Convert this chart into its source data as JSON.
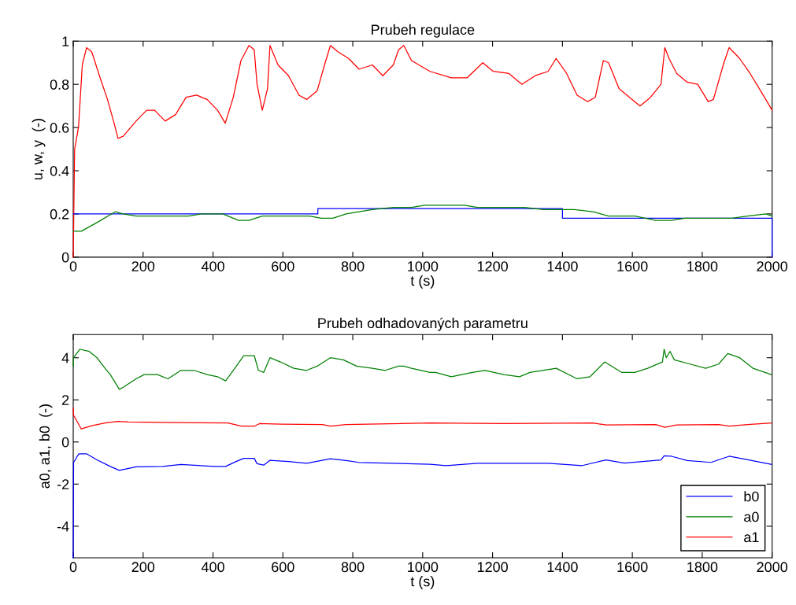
{
  "chart_data": [
    {
      "type": "line",
      "title": "Prubeh regulace",
      "xlabel": "t (s)",
      "ylabel": "u, w, y  (-)",
      "xlim": [
        0,
        2000
      ],
      "ylim": [
        0,
        1
      ],
      "xticks": [
        0,
        200,
        400,
        600,
        800,
        1000,
        1200,
        1400,
        1600,
        1800,
        2000
      ],
      "yticks": [
        0,
        0.2,
        0.4,
        0.6,
        0.8,
        1
      ],
      "grid": false,
      "legend": false,
      "series": [
        {
          "color": "#ff0000",
          "x": [
            0,
            4,
            15,
            26,
            38,
            53,
            75,
            98,
            117,
            128,
            143,
            180,
            210,
            233,
            263,
            293,
            323,
            353,
            383,
            413,
            435,
            458,
            480,
            503,
            518,
            526,
            541,
            556,
            563,
            586,
            616,
            646,
            668,
            698,
            721,
            736,
            758,
            788,
            818,
            856,
            886,
            916,
            931,
            946,
            968,
            1021,
            1082,
            1127,
            1172,
            1202,
            1247,
            1284,
            1322,
            1359,
            1382,
            1412,
            1442,
            1472,
            1494,
            1517,
            1532,
            1562,
            1592,
            1622,
            1652,
            1682,
            1693,
            1705,
            1727,
            1757,
            1787,
            1817,
            1832,
            1862,
            1877,
            1907,
            1937,
            1967,
            2000
          ],
          "values": [
            0,
            0.5,
            0.6,
            0.89,
            0.97,
            0.95,
            0.84,
            0.73,
            0.62,
            0.55,
            0.56,
            0.63,
            0.68,
            0.68,
            0.63,
            0.66,
            0.74,
            0.75,
            0.73,
            0.68,
            0.62,
            0.74,
            0.91,
            0.98,
            0.96,
            0.8,
            0.68,
            0.78,
            0.98,
            0.89,
            0.84,
            0.75,
            0.73,
            0.77,
            0.9,
            0.98,
            0.95,
            0.92,
            0.87,
            0.89,
            0.84,
            0.89,
            0.96,
            0.98,
            0.91,
            0.86,
            0.83,
            0.83,
            0.9,
            0.86,
            0.85,
            0.8,
            0.84,
            0.86,
            0.92,
            0.85,
            0.75,
            0.72,
            0.74,
            0.91,
            0.9,
            0.78,
            0.74,
            0.7,
            0.74,
            0.8,
            0.97,
            0.92,
            0.85,
            0.81,
            0.8,
            0.72,
            0.73,
            0.9,
            0.97,
            0.92,
            0.85,
            0.77,
            0.68
          ]
        },
        {
          "color": "#0000ff",
          "x": [
            0,
            700,
            700,
            1400,
            1400,
            2000,
            2000
          ],
          "values": [
            0.2,
            0.2,
            0.225,
            0.225,
            0.18,
            0.18,
            0
          ]
        },
        {
          "color": "#008000",
          "x": [
            0,
            23,
            68,
            120,
            143,
            180,
            218,
            293,
            330,
            368,
            428,
            473,
            503,
            541,
            593,
            638,
            676,
            710,
            743,
            781,
            818,
            856,
            916,
            968,
            1006,
            1119,
            1157,
            1292,
            1344,
            1397,
            1434,
            1487,
            1532,
            1607,
            1667,
            1712,
            1750,
            1832,
            1885,
            1930,
            1982,
            2000
          ],
          "values": [
            0.12,
            0.12,
            0.16,
            0.21,
            0.2,
            0.19,
            0.19,
            0.19,
            0.19,
            0.2,
            0.2,
            0.17,
            0.17,
            0.19,
            0.19,
            0.19,
            0.19,
            0.18,
            0.18,
            0.2,
            0.21,
            0.22,
            0.23,
            0.23,
            0.24,
            0.24,
            0.23,
            0.23,
            0.22,
            0.22,
            0.22,
            0.21,
            0.19,
            0.19,
            0.17,
            0.17,
            0.18,
            0.18,
            0.18,
            0.19,
            0.2,
            0.19
          ]
        }
      ]
    },
    {
      "type": "line",
      "title": "Prubeh odhadovaných parametru",
      "xlabel": "t (s)",
      "ylabel": "a0, a1, b0  (-)",
      "xlim": [
        0,
        2000
      ],
      "ylim": [
        -5.5,
        5.1
      ],
      "xticks": [
        0,
        200,
        400,
        600,
        800,
        1000,
        1200,
        1400,
        1600,
        1800,
        2000
      ],
      "yticks": [
        -4,
        -2,
        0,
        2,
        4
      ],
      "grid": false,
      "legend": "bottom right",
      "series": [
        {
          "name": "b0",
          "color": "#0000ff",
          "x": [
            0,
            1,
            16,
            38,
            68,
            106,
            132,
            180,
            256,
            308,
            406,
            436,
            466,
            488,
            518,
            526,
            545,
            563,
            616,
            668,
            736,
            781,
            818,
            1021,
            1067,
            1157,
            1359,
            1457,
            1525,
            1577,
            1682,
            1691,
            1712,
            1757,
            1825,
            1877,
            1922,
            1998
          ],
          "values": [
            -5.5,
            -0.97,
            -0.56,
            -0.56,
            -0.85,
            -1.16,
            -1.35,
            -1.18,
            -1.16,
            -1.07,
            -1.16,
            -1.16,
            -0.93,
            -0.78,
            -0.78,
            -1.03,
            -1.1,
            -0.87,
            -0.93,
            -1.01,
            -0.8,
            -0.88,
            -0.97,
            -1.06,
            -1.12,
            -1.01,
            -1.01,
            -1.12,
            -0.85,
            -1,
            -0.85,
            -0.66,
            -0.68,
            -0.88,
            -0.97,
            -0.68,
            -0.82,
            -1.06
          ]
        },
        {
          "name": "a0",
          "color": "#008000",
          "x": [
            0,
            1,
            19,
            46,
            68,
            91,
            106,
            121,
            132,
            143,
            180,
            203,
            241,
            271,
            308,
            346,
            383,
            413,
            436,
            458,
            488,
            518,
            530,
            545,
            563,
            593,
            631,
            668,
            698,
            736,
            773,
            811,
            856,
            893,
            931,
            946,
            968,
            1021,
            1037,
            1082,
            1142,
            1179,
            1232,
            1277,
            1307,
            1382,
            1442,
            1479,
            1521,
            1570,
            1607,
            1644,
            1686,
            1691,
            1697,
            1708,
            1720,
            1765,
            1810,
            1847,
            1873,
            1907,
            1945,
            1998
          ],
          "values": [
            3.6,
            4,
            4.4,
            4.3,
            4,
            3.5,
            3.2,
            2.8,
            2.5,
            2.6,
            3,
            3.2,
            3.2,
            3,
            3.4,
            3.4,
            3.2,
            3.1,
            2.9,
            3.4,
            4.1,
            4.1,
            3.4,
            3.3,
            4,
            3.8,
            3.5,
            3.4,
            3.6,
            4,
            3.9,
            3.6,
            3.5,
            3.4,
            3.6,
            3.6,
            3.5,
            3.3,
            3.3,
            3.1,
            3.3,
            3.4,
            3.2,
            3.1,
            3.3,
            3.5,
            3,
            3.1,
            3.8,
            3.3,
            3.3,
            3.5,
            3.8,
            4.4,
            4,
            4.3,
            3.9,
            3.7,
            3.5,
            3.7,
            4.2,
            4,
            3.5,
            3.2
          ]
        },
        {
          "name": "a1",
          "color": "#ff0000",
          "x": [
            0,
            1,
            23,
            53,
            91,
            128,
            158,
            293,
            443,
            481,
            518,
            533,
            593,
            713,
            736,
            781,
            1021,
            1232,
            1487,
            1525,
            1667,
            1693,
            1727,
            1847,
            1877,
            1930,
            1998
          ],
          "values": [
            1.6,
            1.27,
            0.62,
            0.77,
            0.9,
            0.98,
            0.95,
            0.92,
            0.9,
            0.75,
            0.75,
            0.87,
            0.85,
            0.83,
            0.75,
            0.83,
            0.9,
            0.87,
            0.9,
            0.81,
            0.83,
            0.7,
            0.81,
            0.83,
            0.75,
            0.83,
            0.9
          ]
        }
      ]
    }
  ]
}
